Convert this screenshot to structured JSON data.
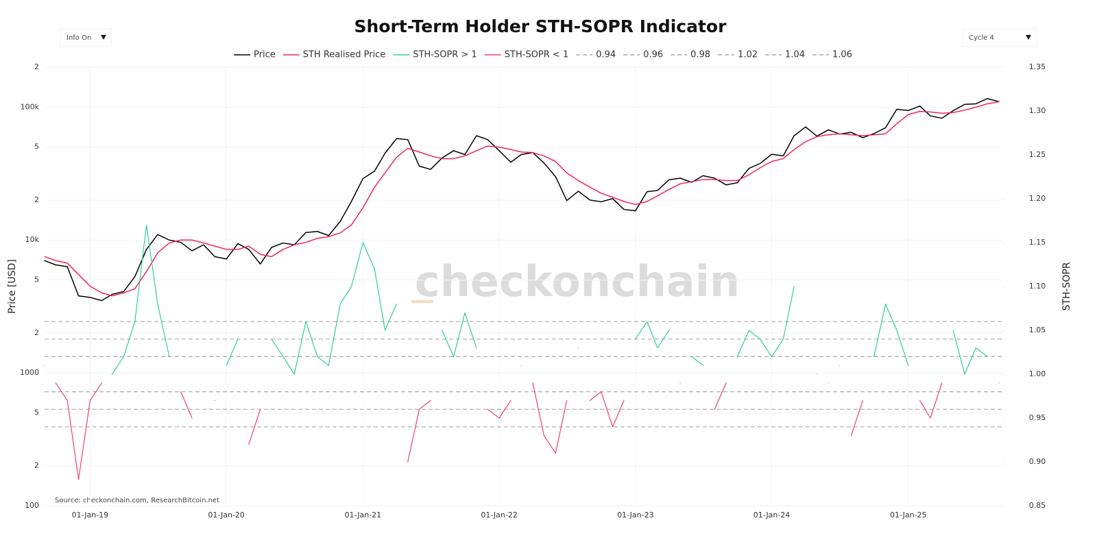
{
  "chart_data": {
    "type": "line",
    "title": "Short-Term Holder STH-SOPR Indicator",
    "controls": [
      {
        "label": "Info On"
      },
      {
        "label": "Cycle 4"
      }
    ],
    "watermark": "checkonchain",
    "source": "Source: checkonchain.com, ResearchBitcoin.net",
    "ylabel": "Price [USD]",
    "y2label": "STH-SOPR",
    "yscale": "log",
    "grid": true,
    "legend": "top",
    "xlim": [
      "2018-09-01",
      "2025-09-10"
    ],
    "xticks": [
      {
        "value": "2019-01-01",
        "label": "01-Jan-19"
      },
      {
        "value": "2020-01-01",
        "label": "01-Jan-20"
      },
      {
        "value": "2021-01-01",
        "label": "01-Jan-21"
      },
      {
        "value": "2022-01-01",
        "label": "01-Jan-22"
      },
      {
        "value": "2023-01-01",
        "label": "01-Jan-23"
      },
      {
        "value": "2024-01-01",
        "label": "01-Jan-24"
      },
      {
        "value": "2025-01-01",
        "label": "01-Jan-25"
      }
    ],
    "ylim": [
      100,
      200000
    ],
    "yticks": [
      100,
      {
        "value": 200,
        "label": "2"
      },
      {
        "value": 500,
        "label": "5"
      },
      1000,
      {
        "value": 2000,
        "label": "2"
      },
      {
        "value": 5000,
        "label": "5"
      },
      {
        "value": 10000,
        "label": "10k"
      },
      {
        "value": 20000,
        "label": "2"
      },
      {
        "value": 50000,
        "label": "5"
      },
      {
        "value": 100000,
        "label": "100k"
      },
      {
        "value": 200000,
        "label": "2"
      }
    ],
    "y2lim": [
      0.85,
      1.35
    ],
    "y2ticks": [
      0.85,
      {
        "value": 0.9,
        "label": "0.90"
      },
      0.95,
      {
        "value": 1,
        "label": "1.00"
      },
      1.05,
      {
        "value": 1.1,
        "label": "1.10"
      },
      1.15,
      {
        "value": 1.2,
        "label": "1.20"
      },
      1.25,
      {
        "value": 1.3,
        "label": "1.30"
      },
      1.35
    ],
    "x": [
      "2018-09-01",
      "2018-10-01",
      "2018-11-01",
      "2018-12-01",
      "2019-01-01",
      "2019-02-01",
      "2019-03-01",
      "2019-04-01",
      "2019-05-01",
      "2019-06-01",
      "2019-07-01",
      "2019-08-01",
      "2019-09-01",
      "2019-10-01",
      "2019-11-01",
      "2019-12-01",
      "2020-01-01",
      "2020-02-01",
      "2020-03-01",
      "2020-04-01",
      "2020-05-01",
      "2020-06-01",
      "2020-07-01",
      "2020-08-01",
      "2020-09-01",
      "2020-10-01",
      "2020-11-01",
      "2020-12-01",
      "2021-01-01",
      "2021-02-01",
      "2021-03-01",
      "2021-04-01",
      "2021-05-01",
      "2021-06-01",
      "2021-07-01",
      "2021-08-01",
      "2021-09-01",
      "2021-10-01",
      "2021-11-01",
      "2021-12-01",
      "2022-01-01",
      "2022-02-01",
      "2022-03-01",
      "2022-04-01",
      "2022-05-01",
      "2022-06-01",
      "2022-07-01",
      "2022-08-01",
      "2022-09-01",
      "2022-10-01",
      "2022-11-01",
      "2022-12-01",
      "2023-01-01",
      "2023-02-01",
      "2023-03-01",
      "2023-04-01",
      "2023-05-01",
      "2023-06-01",
      "2023-07-01",
      "2023-08-01",
      "2023-09-01",
      "2023-10-01",
      "2023-11-01",
      "2023-12-01",
      "2024-01-01",
      "2024-02-01",
      "2024-03-01",
      "2024-04-01",
      "2024-05-01",
      "2024-06-01",
      "2024-07-01",
      "2024-08-01",
      "2024-09-01",
      "2024-10-01",
      "2024-11-01",
      "2024-12-01",
      "2025-01-01",
      "2025-02-01",
      "2025-03-01",
      "2025-04-01",
      "2025-05-01",
      "2025-06-01",
      "2025-07-01",
      "2025-08-01",
      "2025-09-01"
    ],
    "series": [
      {
        "name": "Price",
        "color": "#000000",
        "axis": "y",
        "values": [
          7000,
          6500,
          6300,
          3800,
          3700,
          3500,
          3900,
          4100,
          5300,
          8500,
          11000,
          10000,
          9600,
          8300,
          9200,
          7500,
          7200,
          9400,
          8500,
          6600,
          8800,
          9500,
          9200,
          11400,
          11600,
          10800,
          13800,
          19500,
          29000,
          33000,
          45000,
          58000,
          57000,
          36000,
          34000,
          41500,
          47000,
          44000,
          61000,
          57000,
          47000,
          38500,
          44000,
          45500,
          38000,
          30000,
          19800,
          23300,
          20000,
          19400,
          20500,
          17000,
          16600,
          23100,
          23600,
          28400,
          29200,
          27200,
          30500,
          29200,
          26000,
          27000,
          34600,
          37700,
          44200,
          43000,
          61000,
          71000,
          60500,
          67500,
          62700,
          64600,
          58900,
          63300,
          70000,
          96400,
          94400,
          102000,
          86000,
          82500,
          94000,
          105000,
          106000,
          116000,
          110000
        ]
      },
      {
        "name": "STH Realised Price",
        "color": "#f0245a",
        "axis": "y",
        "values": [
          7500,
          7000,
          6700,
          5500,
          4500,
          4000,
          3800,
          4000,
          4300,
          5800,
          8000,
          9500,
          10000,
          10000,
          9500,
          9000,
          8500,
          8500,
          9000,
          7800,
          7500,
          8500,
          9200,
          9600,
          10300,
          10600,
          11300,
          13000,
          17500,
          25000,
          32000,
          42000,
          49000,
          46000,
          43000,
          41000,
          41000,
          43000,
          47000,
          51000,
          50000,
          48000,
          46000,
          45500,
          43000,
          39000,
          32000,
          28000,
          25000,
          22500,
          21000,
          19500,
          18500,
          19500,
          21500,
          24000,
          26500,
          27500,
          28500,
          28500,
          28000,
          28000,
          31000,
          35000,
          39000,
          41000,
          48000,
          55000,
          60000,
          62000,
          63000,
          62000,
          61000,
          62000,
          63000,
          75000,
          88000,
          93000,
          92000,
          90000,
          91000,
          95000,
          100000,
          106000,
          110000
        ]
      },
      {
        "name": "STH-SOPR > 1",
        "color": "#2fcf94",
        "axis": "y2",
        "values": [
          1.01,
          null,
          null,
          null,
          null,
          null,
          1.0,
          1.02,
          1.06,
          1.17,
          1.08,
          1.02,
          null,
          null,
          1.02,
          null,
          1.01,
          1.04,
          null,
          null,
          1.04,
          1.02,
          1.0,
          1.06,
          1.02,
          1.01,
          1.08,
          1.1,
          1.15,
          1.12,
          1.05,
          1.08,
          null,
          null,
          null,
          1.05,
          1.02,
          1.07,
          1.03,
          null,
          null,
          null,
          1.01,
          null,
          null,
          null,
          null,
          1.03,
          null,
          null,
          null,
          null,
          1.04,
          1.06,
          1.03,
          1.05,
          null,
          1.02,
          1.01,
          null,
          null,
          1.02,
          1.05,
          1.04,
          1.02,
          1.04,
          1.1,
          null,
          1.0,
          null,
          1.01,
          null,
          null,
          1.02,
          1.08,
          1.05,
          1.01,
          null,
          null,
          null,
          1.05,
          1.0,
          1.03,
          1.02,
          null
        ]
      },
      {
        "name": "STH-SOPR < 1",
        "color": "#f0406c",
        "axis": "y2",
        "values": [
          null,
          0.99,
          0.97,
          0.88,
          0.97,
          0.99,
          null,
          null,
          null,
          null,
          null,
          null,
          0.98,
          0.95,
          null,
          0.97,
          null,
          null,
          0.92,
          0.96,
          null,
          null,
          null,
          null,
          null,
          null,
          null,
          null,
          null,
          null,
          null,
          null,
          0.9,
          0.96,
          0.97,
          null,
          null,
          null,
          null,
          0.96,
          0.95,
          0.97,
          null,
          0.99,
          0.93,
          0.91,
          0.97,
          null,
          0.97,
          0.98,
          0.94,
          0.97,
          null,
          null,
          null,
          null,
          0.99,
          null,
          null,
          0.96,
          0.99,
          null,
          null,
          null,
          null,
          null,
          null,
          0.98,
          null,
          0.99,
          null,
          0.93,
          0.97,
          null,
          null,
          null,
          null,
          0.97,
          0.95,
          0.99,
          null,
          null,
          null,
          null,
          0.99
        ]
      }
    ],
    "reference_lines": [
      {
        "name": "0.94",
        "value": 0.94,
        "color": "#aaaaaa"
      },
      {
        "name": "0.96",
        "value": 0.96,
        "color": "#aaaaaa"
      },
      {
        "name": "0.98",
        "value": 0.98,
        "color": "#aaaaaa"
      },
      {
        "name": "1.02",
        "value": 1.02,
        "color": "#aaaaaa"
      },
      {
        "name": "1.04",
        "value": 1.04,
        "color": "#aaaaaa"
      },
      {
        "name": "1.06",
        "value": 1.06,
        "color": "#aaaaaa"
      }
    ]
  }
}
